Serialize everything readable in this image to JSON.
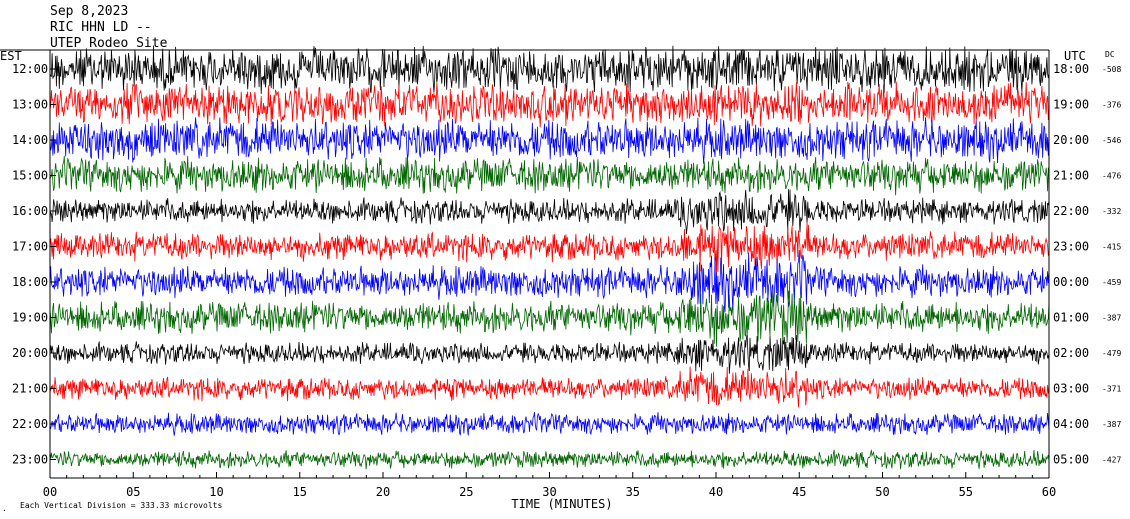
{
  "chart_data": {
    "type": "line",
    "title": {
      "date": "Sep 8,2023",
      "station": "RIC HHN LD --",
      "location": "UTEP Rodeo Site"
    },
    "left_axis_label": "EST",
    "right_axis_label": "UTC",
    "dc_label": "DC",
    "xlabel": "TIME (MINUTES)",
    "xlim": [
      0,
      60
    ],
    "x_ticks": [
      "00",
      "05",
      "10",
      "15",
      "20",
      "25",
      "30",
      "35",
      "40",
      "45",
      "50",
      "55",
      "60"
    ],
    "scale_note": "Each Vertical Division = 333.33 microvolts",
    "trace_colors": [
      "#000000",
      "#ff0000",
      "#0000ff",
      "#006600"
    ],
    "rows": [
      {
        "est": "12:00",
        "utc": "18:00",
        "dc": "-508",
        "color": "#000000",
        "amp": 26
      },
      {
        "est": "13:00",
        "utc": "19:00",
        "dc": "-376",
        "color": "#ff0000",
        "amp": 24
      },
      {
        "est": "14:00",
        "utc": "20:00",
        "dc": "-546",
        "color": "#0000ff",
        "amp": 24
      },
      {
        "est": "15:00",
        "utc": "21:00",
        "dc": "-476",
        "color": "#006600",
        "amp": 20
      },
      {
        "est": "16:00",
        "utc": "22:00",
        "dc": "-332",
        "color": "#000000",
        "amp": 14
      },
      {
        "est": "17:00",
        "utc": "23:00",
        "dc": "-415",
        "color": "#ff0000",
        "amp": 16
      },
      {
        "est": "18:00",
        "utc": "00:00",
        "dc": "-459",
        "color": "#0000ff",
        "amp": 18
      },
      {
        "est": "19:00",
        "utc": "01:00",
        "dc": "-387",
        "color": "#006600",
        "amp": 18
      },
      {
        "est": "20:00",
        "utc": "02:00",
        "dc": "-479",
        "color": "#000000",
        "amp": 12
      },
      {
        "est": "21:00",
        "utc": "03:00",
        "dc": "-371",
        "color": "#ff0000",
        "amp": 13
      },
      {
        "est": "22:00",
        "utc": "04:00",
        "dc": "-387",
        "color": "#0000ff",
        "amp": 12
      },
      {
        "est": "23:00",
        "utc": "05:00",
        "dc": "-427",
        "color": "#006600",
        "amp": 10
      }
    ]
  }
}
